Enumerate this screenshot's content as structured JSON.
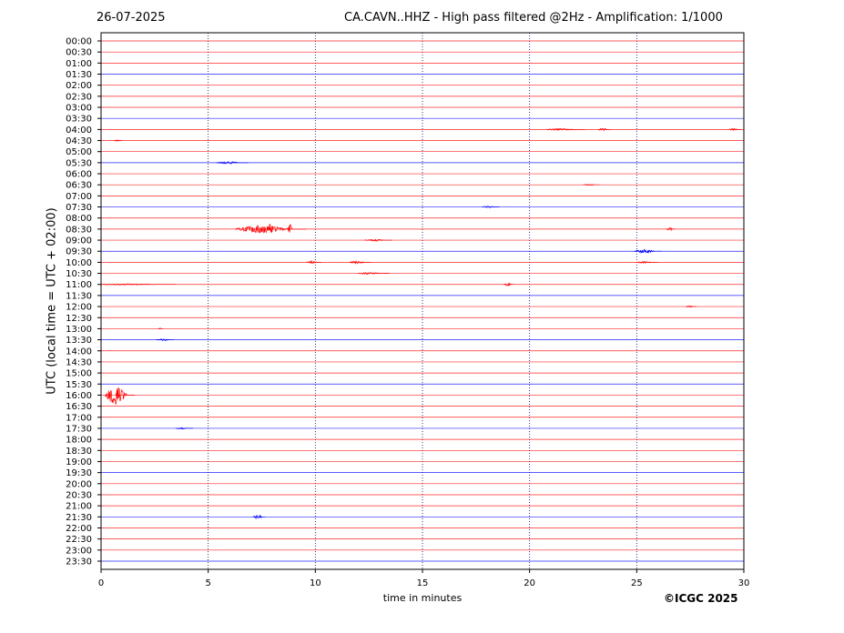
{
  "header": {
    "date": "26-07-2025",
    "title": "CA.CAVN..HHZ - High pass filtered @2Hz - Amplification: 1/1000"
  },
  "footer": {
    "copyright": "©ICGC 2025"
  },
  "chart_data": {
    "type": "line",
    "title": "CA.CAVN..HHZ - High pass filtered @2Hz - Amplification: 1/1000",
    "xlabel": "time in minutes",
    "ylabel": "UTC (local time = UTC + 02:00)",
    "xlim": [
      0,
      30
    ],
    "x_ticks": [
      "0",
      "5",
      "10",
      "15",
      "20",
      "25",
      "30"
    ],
    "x_grid": [
      5,
      10,
      15,
      20,
      25
    ],
    "grid": "vertical dotted",
    "row_colors": [
      "#ff0000",
      "#ff0000",
      "#ff0000",
      "#0000ff"
    ],
    "rows": [
      "00:00",
      "00:30",
      "01:00",
      "01:30",
      "02:00",
      "02:30",
      "03:00",
      "03:30",
      "04:00",
      "04:30",
      "05:00",
      "05:30",
      "06:00",
      "06:30",
      "07:00",
      "07:30",
      "08:00",
      "08:30",
      "09:00",
      "09:30",
      "10:00",
      "10:30",
      "11:00",
      "11:30",
      "12:00",
      "12:30",
      "13:00",
      "13:30",
      "14:00",
      "14:30",
      "15:00",
      "15:30",
      "16:00",
      "16:30",
      "17:00",
      "17:30",
      "18:00",
      "18:30",
      "19:00",
      "19:30",
      "20:00",
      "20:30",
      "21:00",
      "21:30",
      "22:00",
      "22:30",
      "23:00",
      "23:30"
    ],
    "events": [
      {
        "row": "04:00",
        "start": 20.8,
        "end": 22.6,
        "amp": 0.15
      },
      {
        "row": "04:00",
        "start": 23.2,
        "end": 23.8,
        "amp": 0.2
      },
      {
        "row": "04:00",
        "start": 29.3,
        "end": 29.9,
        "amp": 0.15
      },
      {
        "row": "04:30",
        "start": 0.6,
        "end": 1.0,
        "amp": 0.12
      },
      {
        "row": "05:30",
        "start": 5.4,
        "end": 6.9,
        "amp": 0.18
      },
      {
        "row": "06:30",
        "start": 22.5,
        "end": 23.3,
        "amp": 0.1
      },
      {
        "row": "07:30",
        "start": 17.8,
        "end": 18.6,
        "amp": 0.12
      },
      {
        "row": "08:30",
        "start": 6.3,
        "end": 9.6,
        "amp": 0.6
      },
      {
        "row": "08:30",
        "start": 7.8,
        "end": 8.1,
        "amp": 1.1
      },
      {
        "row": "08:30",
        "start": 8.7,
        "end": 9.0,
        "amp": 0.9
      },
      {
        "row": "08:30",
        "start": 26.4,
        "end": 26.8,
        "amp": 0.25
      },
      {
        "row": "09:00",
        "start": 12.3,
        "end": 13.6,
        "amp": 0.15
      },
      {
        "row": "09:30",
        "start": 24.9,
        "end": 26.2,
        "amp": 0.3
      },
      {
        "row": "10:00",
        "start": 9.6,
        "end": 10.3,
        "amp": 0.2
      },
      {
        "row": "10:00",
        "start": 11.6,
        "end": 12.6,
        "amp": 0.2
      },
      {
        "row": "10:00",
        "start": 25.0,
        "end": 26.0,
        "amp": 0.15
      },
      {
        "row": "10:30",
        "start": 12.0,
        "end": 13.5,
        "amp": 0.15
      },
      {
        "row": "11:00",
        "start": 0.0,
        "end": 3.5,
        "amp": 0.1
      },
      {
        "row": "11:00",
        "start": 18.8,
        "end": 19.3,
        "amp": 0.25
      },
      {
        "row": "12:00",
        "start": 27.3,
        "end": 27.8,
        "amp": 0.15
      },
      {
        "row": "13:00",
        "start": 2.7,
        "end": 2.9,
        "amp": 0.12
      },
      {
        "row": "13:30",
        "start": 2.6,
        "end": 3.4,
        "amp": 0.15
      },
      {
        "row": "16:00",
        "start": 0.2,
        "end": 1.6,
        "amp": 1.5
      },
      {
        "row": "16:00",
        "start": 0.7,
        "end": 0.9,
        "amp": 2.0
      },
      {
        "row": "17:30",
        "start": 3.5,
        "end": 4.3,
        "amp": 0.12
      },
      {
        "row": "21:30",
        "start": 7.1,
        "end": 7.7,
        "amp": 0.3
      }
    ]
  }
}
